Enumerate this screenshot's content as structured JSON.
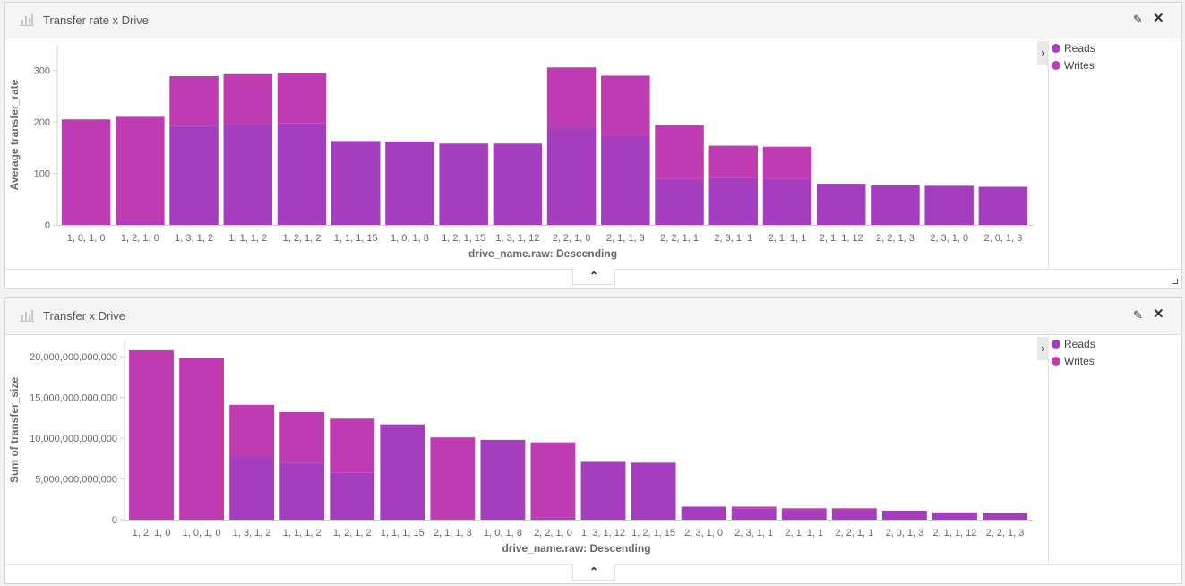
{
  "panels": [
    {
      "title": "Transfer rate x Drive",
      "legend": [
        {
          "label": "Reads",
          "color": "#a43ebf"
        },
        {
          "label": "Writes",
          "color": "#bf3bb2"
        }
      ],
      "collapse_icon": "chevron-up-icon",
      "legend_toggle_icon": "chevron-right-icon"
    },
    {
      "title": "Transfer x Drive",
      "legend": [
        {
          "label": "Reads",
          "color": "#a43ebf"
        },
        {
          "label": "Writes",
          "color": "#bf3bb2"
        }
      ],
      "collapse_icon": "chevron-up-icon",
      "legend_toggle_icon": "chevron-right-icon"
    }
  ],
  "chart_data": [
    {
      "type": "bar",
      "stacked": true,
      "title": "Transfer rate x Drive",
      "xlabel": "drive_name.raw: Descending",
      "ylabel": "Average transfer_rate",
      "ylim": [
        0,
        350
      ],
      "yticks": [
        0,
        100,
        200,
        300
      ],
      "ytick_labels": [
        "0",
        "100",
        "200",
        "300"
      ],
      "categories": [
        "1, 0, 1, 0",
        "1, 2, 1, 0",
        "1, 3, 1, 2",
        "1, 1, 1, 2",
        "1, 2, 1, 2",
        "1, 1, 1, 15",
        "1, 0, 1, 8",
        "1, 2, 1, 15",
        "1, 3, 1, 12",
        "2, 2, 1, 0",
        "2, 1, 1, 3",
        "2, 2, 1, 1",
        "2, 3, 1, 1",
        "2, 1, 1, 1",
        "2, 1, 1, 12",
        "2, 2, 1, 3",
        "2, 3, 1, 0",
        "2, 0, 1, 3"
      ],
      "series": [
        {
          "name": "Reads",
          "color": "#a43ebf",
          "values": [
            0,
            7,
            193,
            196,
            197,
            163,
            162,
            158,
            158,
            189,
            174,
            89,
            91,
            89,
            80,
            77,
            76,
            74
          ]
        },
        {
          "name": "Writes",
          "color": "#bf3bb2",
          "values": [
            205,
            203,
            96,
            97,
            98,
            0,
            0,
            0,
            0,
            117,
            116,
            105,
            63,
            63,
            0,
            0,
            0,
            0
          ]
        }
      ]
    },
    {
      "type": "bar",
      "stacked": true,
      "title": "Transfer x Drive",
      "xlabel": "drive_name.raw: Descending",
      "ylabel": "Sum of transfer_size",
      "ylim": [
        0,
        22000000000000
      ],
      "yticks": [
        0,
        5000000000000,
        10000000000000,
        15000000000000,
        20000000000000
      ],
      "ytick_labels": [
        "0",
        "5,000,000,000,000",
        "10,000,000,000,000",
        "15,000,000,000,000",
        "20,000,000,000,000"
      ],
      "categories": [
        "1, 2, 1, 0",
        "1, 0, 1, 0",
        "1, 3, 1, 2",
        "1, 1, 1, 2",
        "1, 2, 1, 2",
        "1, 1, 1, 15",
        "2, 1, 1, 3",
        "1, 0, 1, 8",
        "2, 2, 1, 0",
        "1, 3, 1, 12",
        "1, 2, 1, 15",
        "2, 3, 1, 0",
        "2, 3, 1, 1",
        "2, 1, 1, 1",
        "2, 2, 1, 1",
        "2, 0, 1, 3",
        "2, 1, 1, 12",
        "2, 2, 1, 3"
      ],
      "series": [
        {
          "name": "Reads",
          "color": "#a43ebf",
          "values": [
            0,
            0,
            7700000000000,
            7000000000000,
            5800000000000,
            11700000000000,
            100000000000,
            9800000000000,
            300000000000,
            7100000000000,
            7000000000000,
            1600000000000,
            1400000000000,
            1200000000000,
            1100000000000,
            1100000000000,
            900000000000,
            800000000000
          ]
        },
        {
          "name": "Writes",
          "color": "#bf3bb2",
          "values": [
            20800000000000,
            19800000000000,
            6400000000000,
            6200000000000,
            6600000000000,
            0,
            10000000000000,
            0,
            9200000000000,
            0,
            0,
            0,
            200000000000,
            200000000000,
            300000000000,
            0,
            0,
            0
          ]
        }
      ]
    }
  ]
}
